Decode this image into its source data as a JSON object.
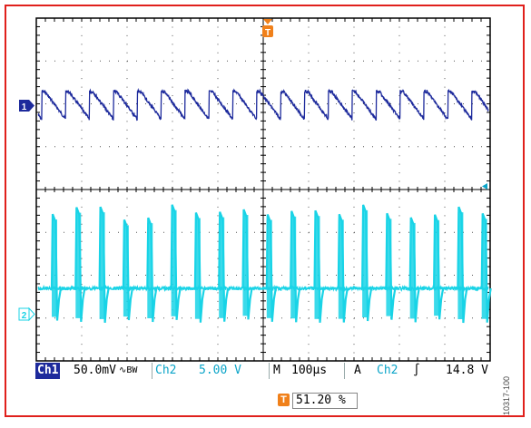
{
  "colors": {
    "ch1": "#1d2a9c",
    "ch2": "#19d3e6",
    "trigger": "#f0801a",
    "frame": "#e0201c",
    "grid": "#000000"
  },
  "markers": {
    "trigger_top": "T",
    "ch1_marker": "1",
    "ch2_marker": "2"
  },
  "status_bar": {
    "ch1_label": "Ch1",
    "ch1_scale": "50.0mV",
    "ch1_coupling": "∿BW",
    "ch2_label": "Ch2",
    "ch2_scale": "5.00 V",
    "timebase_label": "M",
    "timebase_value": "100µs",
    "trigger_mode": "A",
    "trigger_source": "Ch2",
    "trigger_slope": "∫",
    "trigger_level": "14.8 V"
  },
  "trigger_position": {
    "icon": "T",
    "percent": "51.20 %"
  },
  "figure_id": "10317-100",
  "chart_data": {
    "type": "line",
    "grid": true,
    "divisions": {
      "x": 10,
      "y": 8
    },
    "series": [
      {
        "name": "Ch1",
        "shape": "sawtooth ripple",
        "cycles": 19,
        "amplitude_div": 0.6
      },
      {
        "name": "Ch2",
        "shape": "switching pulses",
        "cycles": 19,
        "amplitude_div": 2.3
      }
    ]
  }
}
